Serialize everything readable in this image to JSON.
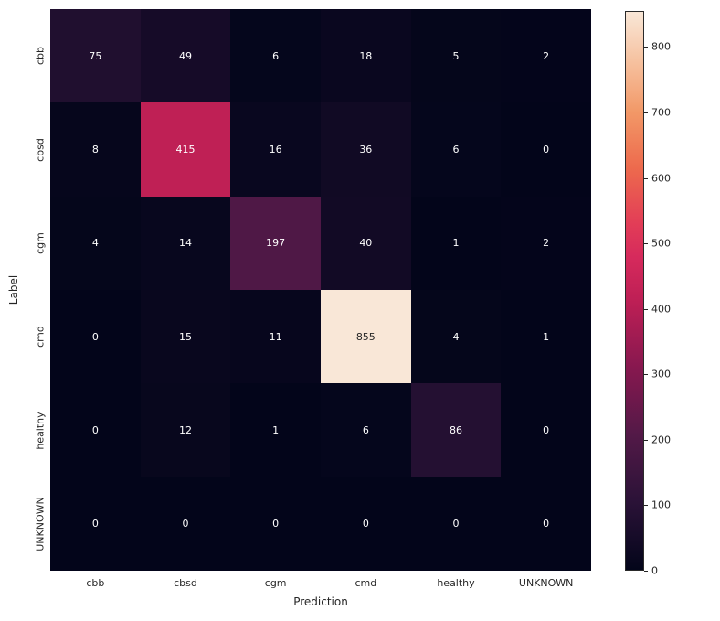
{
  "chart_data": {
    "type": "heatmap",
    "title": "",
    "xlabel": "Prediction",
    "ylabel": "Label",
    "categories": [
      "cbb",
      "cbsd",
      "cgm",
      "cmd",
      "healthy",
      "UNKNOWN"
    ],
    "values": [
      [
        75,
        49,
        6,
        18,
        5,
        2
      ],
      [
        8,
        415,
        16,
        36,
        6,
        0
      ],
      [
        4,
        14,
        197,
        40,
        1,
        2
      ],
      [
        0,
        15,
        11,
        855,
        4,
        1
      ],
      [
        0,
        12,
        1,
        6,
        86,
        0
      ],
      [
        0,
        0,
        0,
        0,
        0,
        0
      ]
    ],
    "vmin": 0,
    "vmax": 855,
    "colorbar_ticks": [
      0,
      100,
      200,
      300,
      400,
      500,
      600,
      700,
      800
    ],
    "colorbar_position": "right",
    "grid": false,
    "colormap": "rocket",
    "colormap_stops": [
      {
        "t": 0.0,
        "color": "#03051A"
      },
      {
        "t": 0.12,
        "color": "#2A1237"
      },
      {
        "t": 0.24,
        "color": "#521947"
      },
      {
        "t": 0.36,
        "color": "#86184F"
      },
      {
        "t": 0.48,
        "color": "#BD1F55"
      },
      {
        "t": 0.56,
        "color": "#D62A5C"
      },
      {
        "t": 0.62,
        "color": "#E23D57"
      },
      {
        "t": 0.72,
        "color": "#ED6A4D"
      },
      {
        "t": 0.82,
        "color": "#F29867"
      },
      {
        "t": 0.91,
        "color": "#F6C19F"
      },
      {
        "t": 1.0,
        "color": "#F9E7D7"
      }
    ],
    "annotation_text_color_dark": "#262626",
    "annotation_text_color_light": "#FFFFFF"
  }
}
